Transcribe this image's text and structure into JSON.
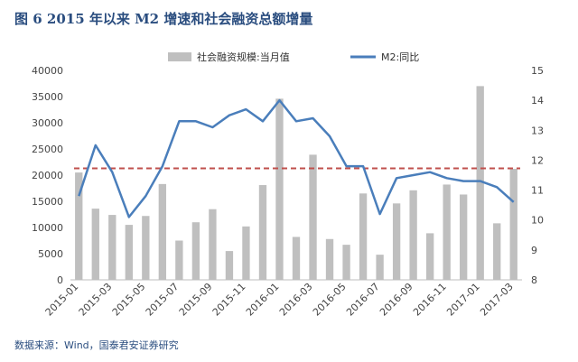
{
  "title": "图 6 2015 年以来 M2 增速和社会融资总额增量",
  "source": "数据来源：Wind，国泰君安证券研究",
  "chart_data": {
    "type": "bar",
    "categories": [
      "2015-01",
      "2015-02",
      "2015-03",
      "2015-04",
      "2015-05",
      "2015-06",
      "2015-07",
      "2015-08",
      "2015-09",
      "2015-10",
      "2015-11",
      "2015-12",
      "2016-01",
      "2016-02",
      "2016-03",
      "2016-04",
      "2016-05",
      "2016-06",
      "2016-07",
      "2016-08",
      "2016-09",
      "2016-10",
      "2016-11",
      "2016-12",
      "2017-01",
      "2017-02",
      "2017-03"
    ],
    "x_tick_labels": [
      "2015-01",
      "2015-03",
      "2015-05",
      "2015-07",
      "2015-09",
      "2015-11",
      "2016-01",
      "2016-03",
      "2016-05",
      "2016-07",
      "2016-09",
      "2016-11",
      "2017-01",
      "2017-03"
    ],
    "series": [
      {
        "name": "社会融资规模:当月值",
        "type": "bar",
        "axis": "left",
        "color": "#bfbfbf",
        "values": [
          20500,
          13600,
          12400,
          10500,
          12200,
          18300,
          7500,
          11000,
          13500,
          5500,
          10200,
          18100,
          34600,
          8200,
          23900,
          7800,
          6700,
          16500,
          4800,
          14600,
          17100,
          8900,
          18200,
          16300,
          37000,
          10800,
          21200
        ]
      },
      {
        "name": "M2:同比",
        "type": "line",
        "axis": "right",
        "color": "#4a7ebb",
        "values": [
          10.8,
          12.5,
          11.6,
          10.1,
          10.8,
          11.8,
          13.3,
          13.3,
          13.1,
          13.5,
          13.7,
          13.3,
          14.0,
          13.3,
          13.4,
          12.8,
          11.8,
          11.8,
          10.2,
          11.4,
          11.5,
          11.6,
          11.4,
          11.3,
          11.3,
          11.1,
          10.6
        ]
      }
    ],
    "reference_line": {
      "axis": "left",
      "value": 21300,
      "color": "#c0504d",
      "style": "dashed"
    },
    "y_left": {
      "ylim": [
        0,
        40000
      ],
      "ticks": [
        0,
        5000,
        10000,
        15000,
        20000,
        25000,
        30000,
        35000,
        40000
      ]
    },
    "y_right": {
      "ylim": [
        8,
        15
      ],
      "ticks": [
        8,
        9,
        10,
        11,
        12,
        13,
        14,
        15
      ]
    },
    "legend_position": "top",
    "grid": false
  }
}
